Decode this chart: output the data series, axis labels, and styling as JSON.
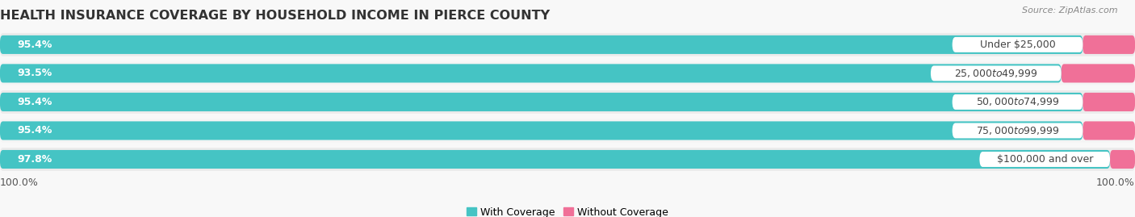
{
  "title": "HEALTH INSURANCE COVERAGE BY HOUSEHOLD INCOME IN PIERCE COUNTY",
  "source": "Source: ZipAtlas.com",
  "categories": [
    "Under $25,000",
    "$25,000 to $49,999",
    "$50,000 to $74,999",
    "$75,000 to $99,999",
    "$100,000 and over"
  ],
  "with_coverage": [
    95.4,
    93.5,
    95.4,
    95.4,
    97.8
  ],
  "without_coverage": [
    4.6,
    6.5,
    4.6,
    4.6,
    2.2
  ],
  "color_with": "#45C4C4",
  "color_without": "#F07098",
  "color_row_odd": "#EBEBEB",
  "color_row_even": "#F4F4F4",
  "color_bg_fig": "#F8F8F8",
  "title_fontsize": 11.5,
  "label_fontsize": 9,
  "bar_height": 0.65,
  "legend_label_with": "With Coverage",
  "legend_label_without": "Without Coverage",
  "bottom_label": "100.0%",
  "total_width": 100
}
